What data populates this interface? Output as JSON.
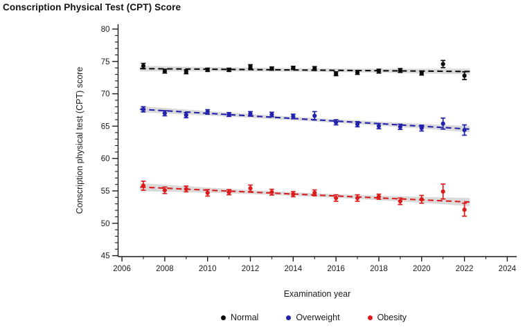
{
  "title": "Conscription Physical Test (CPT) Score",
  "chart_data": {
    "type": "scatter",
    "title": "Conscription Physical Test (CPT) Score",
    "xlabel": "Examination year",
    "ylabel": "Conscription physical test (CPT) score",
    "x_ticks": [
      2006,
      2008,
      2010,
      2012,
      2014,
      2016,
      2018,
      2020,
      2022,
      2024
    ],
    "y_ticks": [
      45,
      50,
      55,
      60,
      65,
      70,
      75,
      80
    ],
    "x_minor_step": 1,
    "y_minor_step": 1,
    "xlim": [
      2005.82,
      2024.44
    ],
    "ylim": [
      44.85,
      80.75
    ],
    "grid": false,
    "legend_position": "bottom-center",
    "trend": "dashed linear fit per series with gray confidence band",
    "band_color": "#cdcdcd",
    "x": [
      2007,
      2008,
      2009,
      2010,
      2011,
      2012,
      2013,
      2014,
      2015,
      2016,
      2017,
      2018,
      2019,
      2020,
      2021,
      2022
    ],
    "series": [
      {
        "name": "Normal",
        "color": "#0a0a0a",
        "values": [
          74.3,
          73.5,
          73.4,
          73.7,
          73.7,
          74.2,
          73.9,
          74.0,
          73.9,
          73.1,
          73.3,
          73.5,
          73.6,
          73.2,
          74.6,
          72.8
        ],
        "errors": [
          0.4,
          0.3,
          0.3,
          0.25,
          0.25,
          0.3,
          0.25,
          0.25,
          0.3,
          0.3,
          0.3,
          0.3,
          0.3,
          0.3,
          0.55,
          0.6
        ]
      },
      {
        "name": "Overweight",
        "color": "#2121ac",
        "values": [
          67.6,
          67.0,
          66.7,
          67.2,
          66.8,
          66.9,
          66.8,
          66.5,
          66.6,
          65.6,
          65.3,
          65.0,
          64.9,
          64.7,
          65.4,
          64.4
        ],
        "errors": [
          0.4,
          0.4,
          0.4,
          0.35,
          0.3,
          0.35,
          0.35,
          0.35,
          0.65,
          0.4,
          0.4,
          0.4,
          0.4,
          0.45,
          0.85,
          0.8
        ]
      },
      {
        "name": "Obesity",
        "color": "#dc1c1c",
        "values": [
          55.8,
          55.1,
          55.3,
          54.7,
          54.8,
          55.4,
          54.8,
          54.5,
          54.7,
          53.9,
          53.9,
          54.1,
          53.4,
          53.7,
          54.9,
          52.1
        ],
        "errors": [
          0.7,
          0.5,
          0.45,
          0.5,
          0.4,
          0.5,
          0.45,
          0.4,
          0.45,
          0.5,
          0.5,
          0.4,
          0.5,
          0.6,
          1.15,
          1.0
        ]
      }
    ]
  },
  "legend": {
    "items": [
      {
        "label": "Normal",
        "color": "#0a0a0a"
      },
      {
        "label": "Overweight",
        "color": "#2121ac"
      },
      {
        "label": "Obesity",
        "color": "#dc1c1c"
      }
    ]
  }
}
